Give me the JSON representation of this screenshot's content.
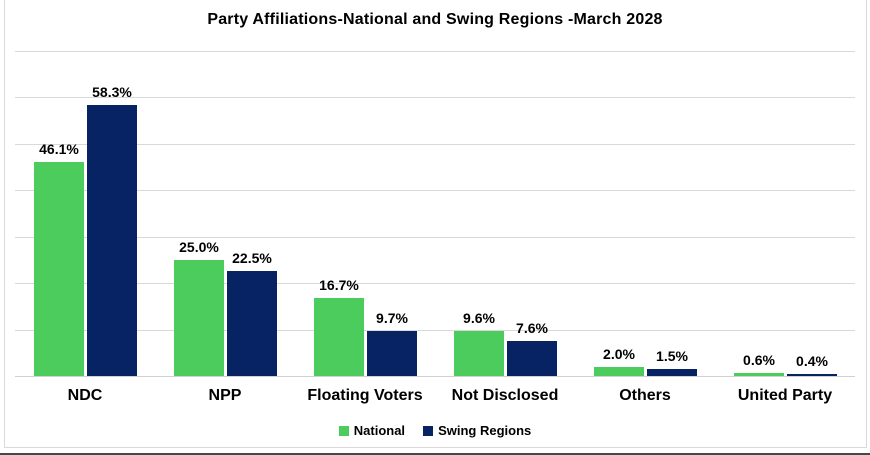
{
  "chart_data": {
    "type": "bar",
    "title": "Party Affiliations-National and Swing Regions -March 2028",
    "categories": [
      "NDC",
      "NPP",
      "Floating Voters",
      "Not Disclosed",
      "Others",
      "United Party"
    ],
    "series": [
      {
        "name": "National",
        "color": "#4CCC5C",
        "values": [
          46.1,
          25.0,
          16.7,
          9.6,
          2.0,
          0.6
        ],
        "labels": [
          "46.1%",
          "25.0%",
          "16.7%",
          "9.6%",
          "2.0%",
          "0.6%"
        ]
      },
      {
        "name": "Swing Regions",
        "color": "#082363",
        "values": [
          58.3,
          22.5,
          9.7,
          7.6,
          1.5,
          0.4
        ],
        "labels": [
          "58.3%",
          "22.5%",
          "9.7%",
          "7.6%",
          "1.5%",
          "0.4%"
        ]
      }
    ],
    "ylim": [
      0,
      70
    ],
    "gridline_step": 10,
    "grid": "horizontal",
    "y_axis_tick_labels_visible": false,
    "legend_position": "bottom",
    "colors": {
      "gridline": "#D9D9D9",
      "text": "#000000",
      "background": "#FFFFFF"
    }
  }
}
